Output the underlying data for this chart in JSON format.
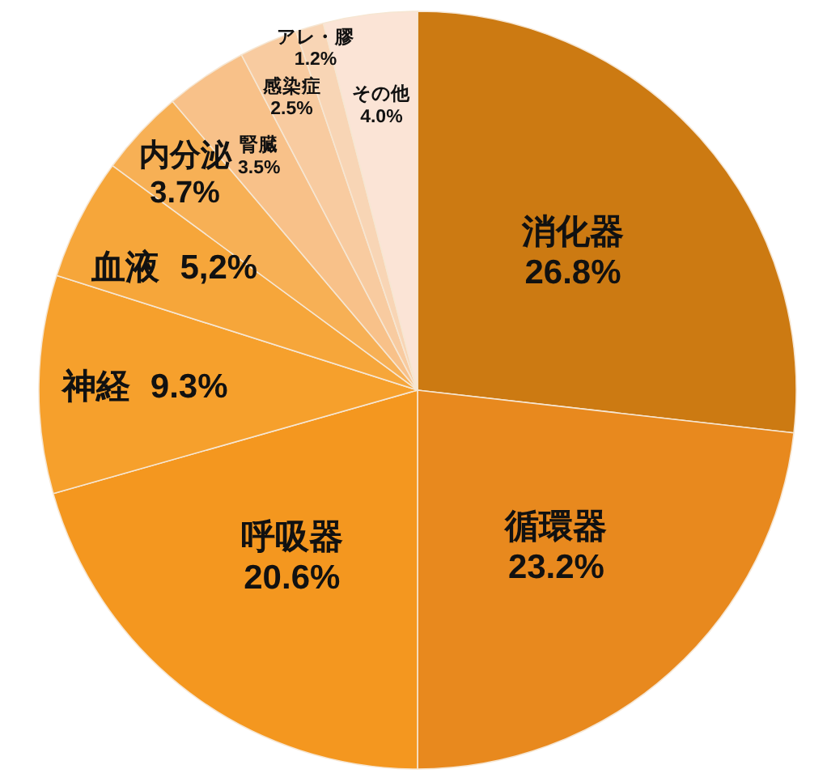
{
  "chart_data": {
    "type": "pie",
    "categories": [
      "消化器",
      "循環器",
      "呼吸器",
      "神経",
      "血液",
      "内分泌",
      "腎臓",
      "感染症",
      "アレ・膠",
      "その他"
    ],
    "values": [
      26.8,
      23.2,
      20.6,
      9.3,
      5.2,
      3.7,
      3.5,
      2.5,
      1.2,
      4.0
    ],
    "value_labels": [
      "26.8%",
      "23.2%",
      "20.6%",
      "9.3%",
      "5,2%",
      "3.7%",
      "3.5%",
      "2.5%",
      "1.2%",
      "4.0%"
    ],
    "colors": [
      "#cc7a12",
      "#e8891e",
      "#f4971f",
      "#f6a02c",
      "#f6a63a",
      "#f7b055",
      "#f8c189",
      "#f8cba0",
      "#f8d5b5",
      "#fbe4d6"
    ]
  }
}
